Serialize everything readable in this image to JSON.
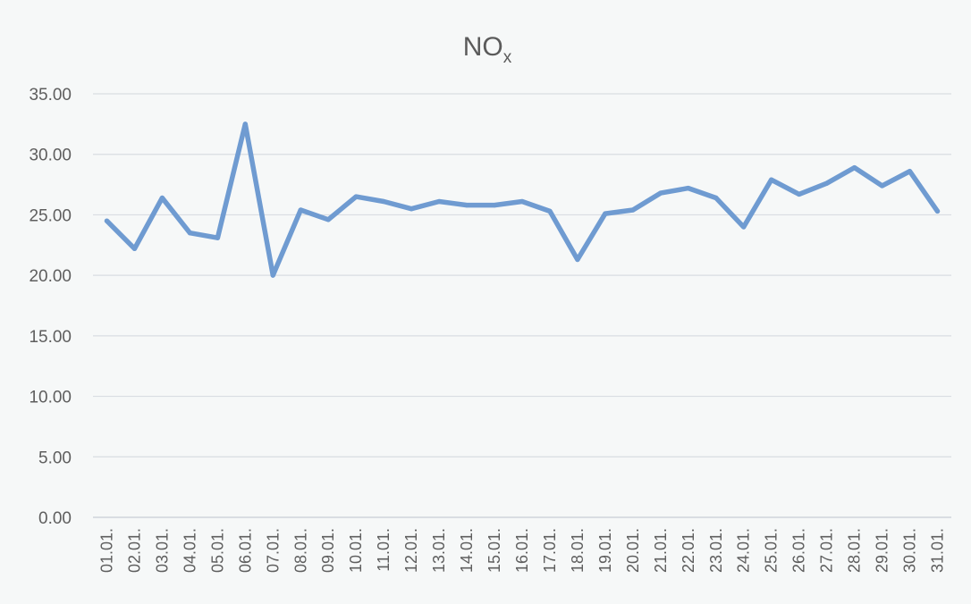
{
  "chart_data": {
    "type": "line",
    "title": "NO",
    "title_subscript": "x",
    "categories": [
      "01.01.",
      "02.01.",
      "03.01.",
      "04.01.",
      "05.01.",
      "06.01.",
      "07.01.",
      "08.01.",
      "09.01.",
      "10.01.",
      "11.01.",
      "12.01.",
      "13.01.",
      "14.01.",
      "15.01.",
      "16.01.",
      "17.01.",
      "18.01.",
      "19.01.",
      "20.01.",
      "21.01.",
      "22.01.",
      "23.01.",
      "24.01.",
      "25.01.",
      "26.01.",
      "27.01.",
      "28.01.",
      "29.01.",
      "30.01.",
      "31.01."
    ],
    "values": [
      24.5,
      22.2,
      26.4,
      23.5,
      23.1,
      32.5,
      20.0,
      25.4,
      24.6,
      26.5,
      26.1,
      25.5,
      26.1,
      25.8,
      25.8,
      26.1,
      25.3,
      21.3,
      25.1,
      25.4,
      26.8,
      27.2,
      26.4,
      24.0,
      27.9,
      26.7,
      27.6,
      28.9,
      27.4,
      28.6,
      25.3
    ],
    "yticks": [
      "0.00",
      "5.00",
      "10.00",
      "15.00",
      "20.00",
      "25.00",
      "30.00",
      "35.00"
    ],
    "ylim": [
      0,
      35
    ],
    "grid": true,
    "legend": "none",
    "color": "#6f9bd1"
  }
}
